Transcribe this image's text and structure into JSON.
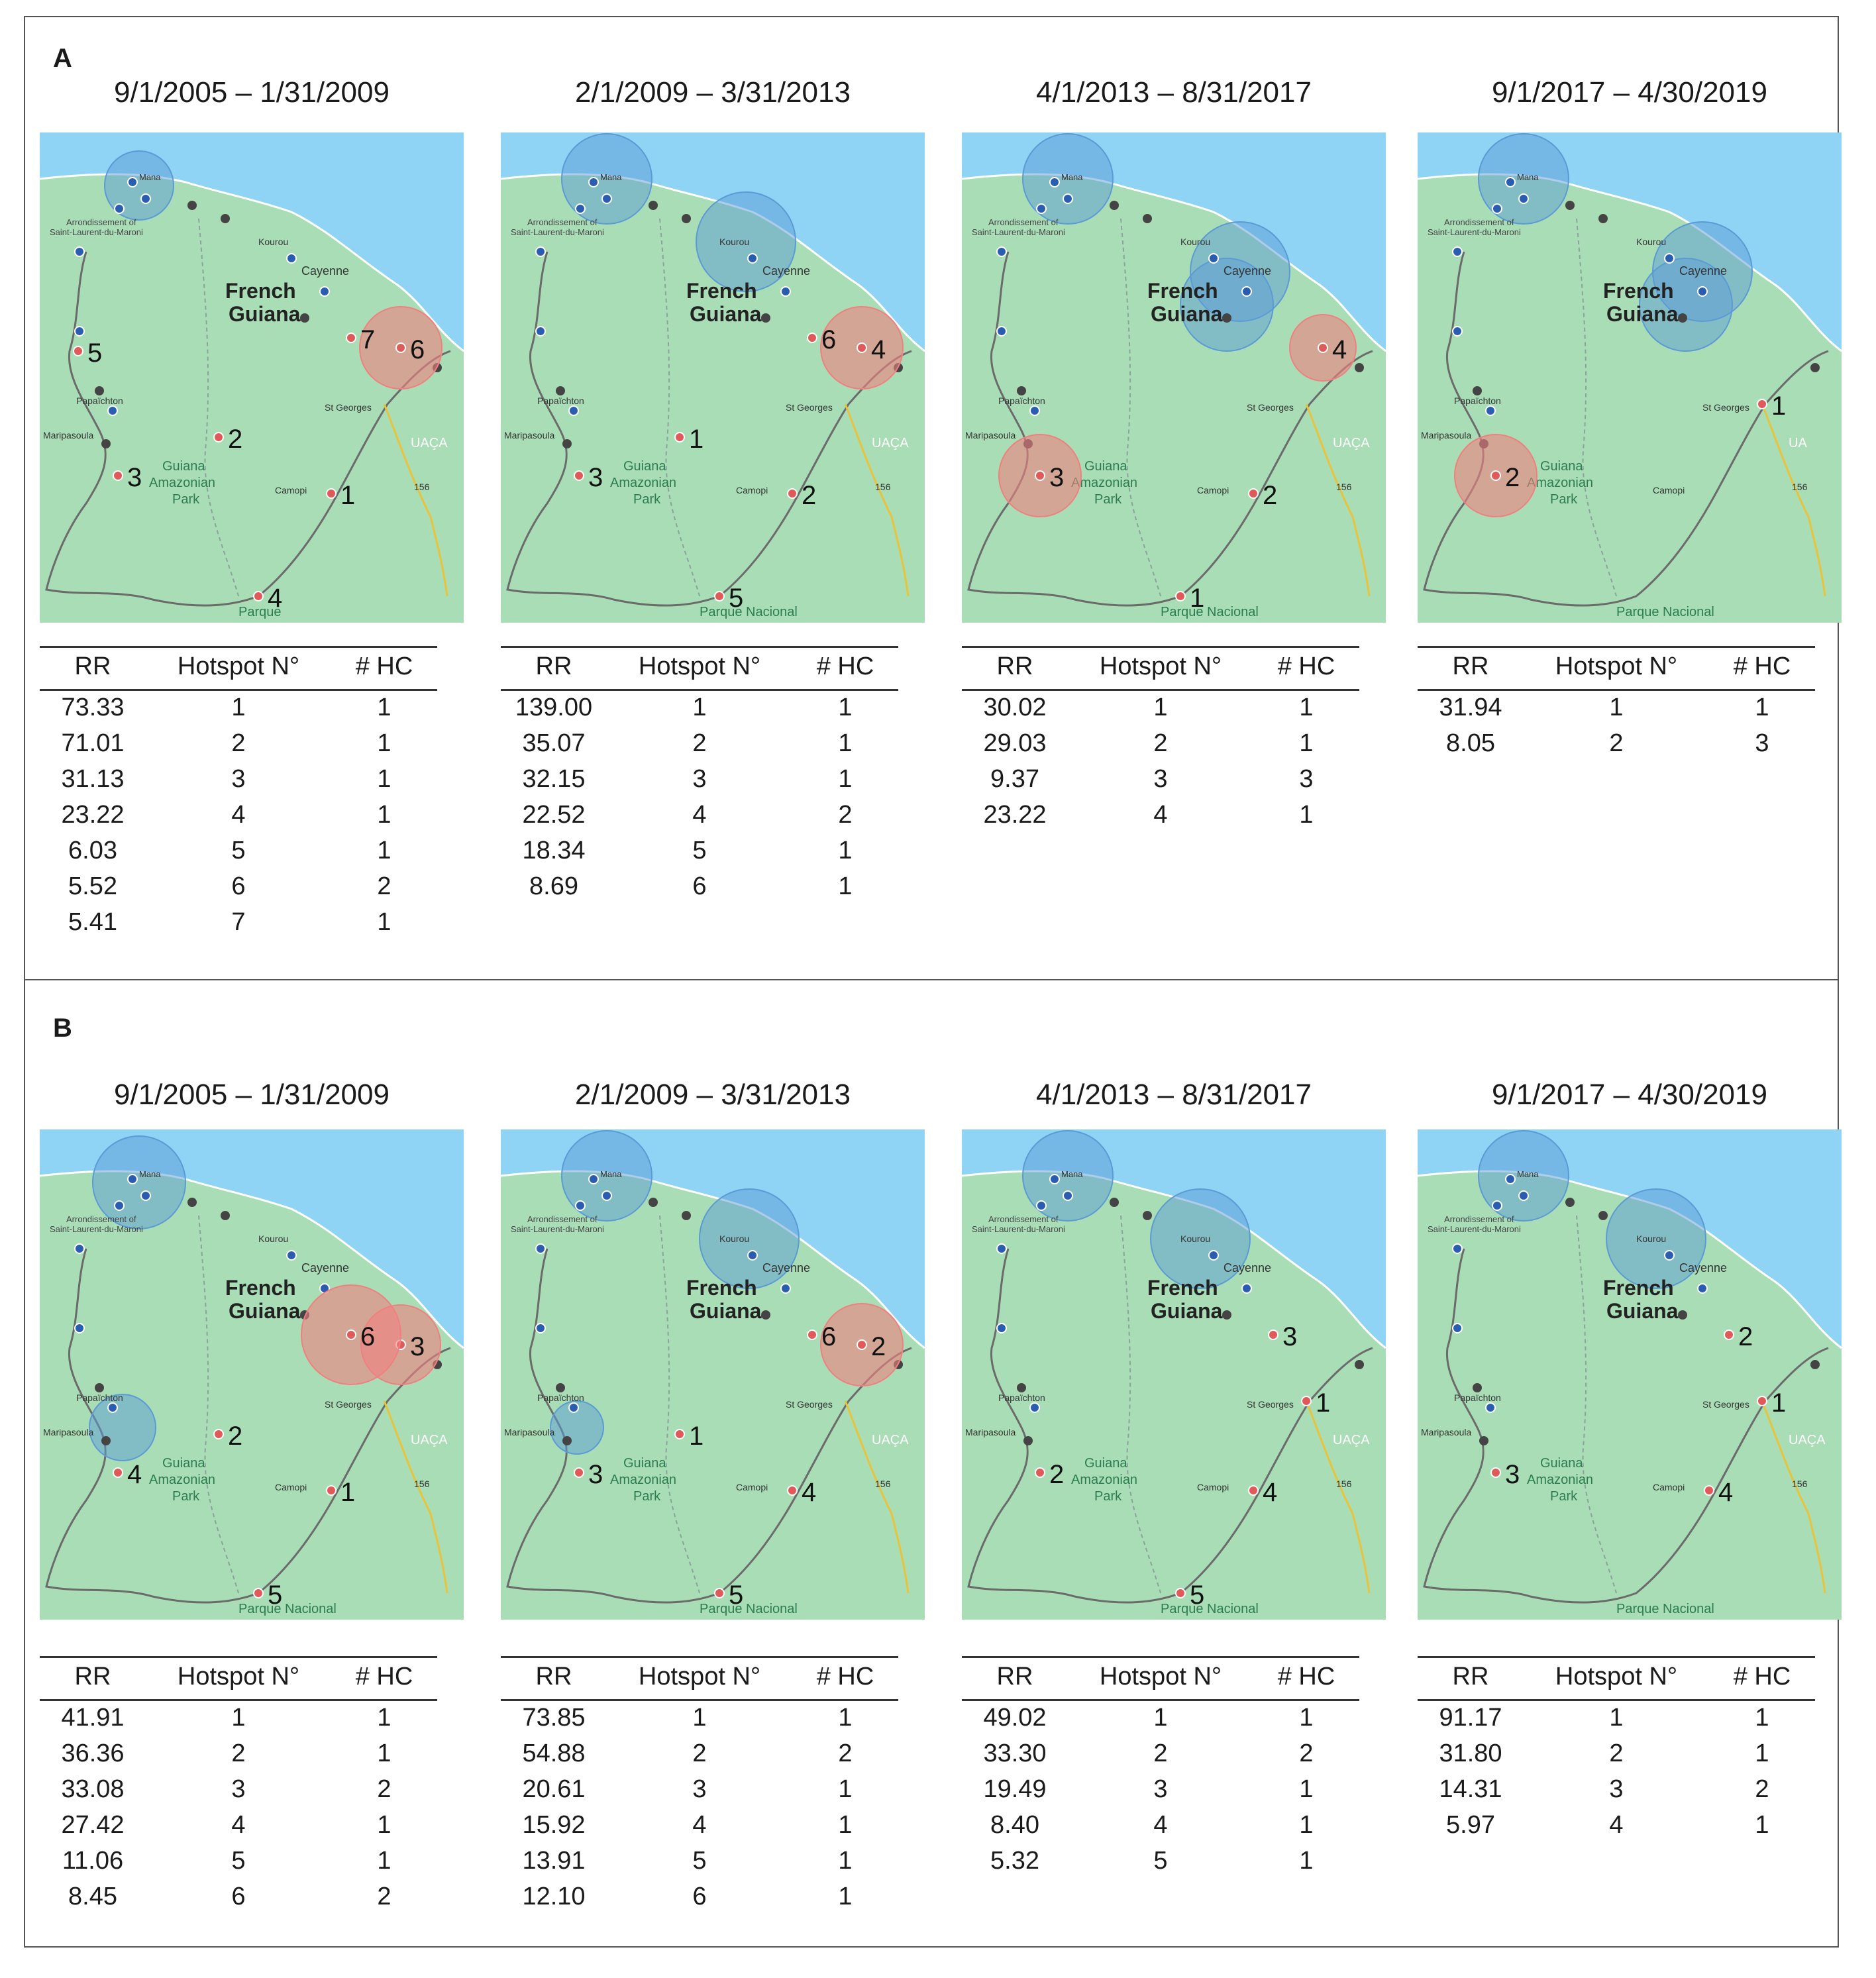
{
  "panels": [
    {
      "label": "A",
      "maps": [
        {
          "period": "9/1/2005 – 1/31/2009",
          "headers": [
            "RR",
            "Hotspot N°",
            "# HC"
          ],
          "rows": [
            [
              "73.33",
              "1",
              "1"
            ],
            [
              "71.01",
              "2",
              "1"
            ],
            [
              "31.13",
              "3",
              "1"
            ],
            [
              "23.22",
              "4",
              "1"
            ],
            [
              "6.03",
              "5",
              "1"
            ],
            [
              "5.52",
              "6",
              "2"
            ],
            [
              "5.41",
              "7",
              "1"
            ]
          ],
          "labels": {
            "mana": "Mana",
            "arr1": "Arrondissement of",
            "arr2": "Saint-Laurent-du-Maroni",
            "kourou": "Kourou",
            "cayenne": "Cayenne",
            "fg1": "French",
            "fg2": "Guiana",
            "papa": "Papaïchton",
            "mari": "Maripasoula",
            "park1": "Guiana",
            "park2": "Amazonian",
            "park3": "Park",
            "stg": "St Georges",
            "camopi": "Camopi",
            "uaca": "UAÇA",
            "road": "156",
            "parque": "Parque"
          }
        },
        {
          "period": "2/1/2009 – 3/31/2013",
          "headers": [
            "RR",
            "Hotspot N°",
            "# HC"
          ],
          "rows": [
            [
              "139.00",
              "1",
              "1"
            ],
            [
              "35.07",
              "2",
              "1"
            ],
            [
              "32.15",
              "3",
              "1"
            ],
            [
              "22.52",
              "4",
              "2"
            ],
            [
              "18.34",
              "5",
              "1"
            ],
            [
              "8.69",
              "6",
              "1"
            ]
          ],
          "labels": {
            "mana": "Mana",
            "arr1": "Arrondissement of",
            "arr2": "Saint-Laurent-du-Maroni",
            "kourou": "Kourou",
            "cayenne": "Cayenne",
            "fg1": "French",
            "fg2": "Guiana",
            "papa": "Papaïchton",
            "mari": "Maripasoula",
            "park1": "Guiana",
            "park2": "Amazonian",
            "park3": "Park",
            "stg": "St Georges",
            "camopi": "Camopi",
            "uaca": "UAÇA",
            "road": "156",
            "parque": "Parque Nacional"
          }
        },
        {
          "period": "4/1/2013 – 8/31/2017",
          "headers": [
            "RR",
            "Hotspot N°",
            "# HC"
          ],
          "rows": [
            [
              "30.02",
              "1",
              "1"
            ],
            [
              "29.03",
              "2",
              "1"
            ],
            [
              "9.37",
              "3",
              "3"
            ],
            [
              "23.22",
              "4",
              "1"
            ]
          ],
          "labels": {
            "mana": "Mana",
            "arr1": "Arrondissement of",
            "arr2": "Saint-Laurent-du-Maroni",
            "kourou": "Kourou",
            "cayenne": "Cayenne",
            "fg1": "French",
            "fg2": "Guiana",
            "papa": "Papaïchton",
            "mari": "Maripasoula",
            "park1": "Guiana",
            "park2": "Amazonian",
            "park3": "Park",
            "stg": "St Georges",
            "camopi": "Camopi",
            "uaca": "UAÇA",
            "road": "156",
            "parque": "Parque Nacional"
          }
        },
        {
          "period": "9/1/2017 – 4/30/2019",
          "headers": [
            "RR",
            "Hotspot N°",
            "# HC"
          ],
          "rows": [
            [
              "31.94",
              "1",
              "1"
            ],
            [
              "8.05",
              "2",
              "3"
            ]
          ],
          "labels": {
            "mana": "Mana",
            "arr1": "Arrondissement of",
            "arr2": "Saint-Laurent-du-Maroni",
            "kourou": "Kourou",
            "cayenne": "Cayenne",
            "fg1": "French",
            "fg2": "Guiana",
            "papa": "Papaïchton",
            "mari": "Maripasoula",
            "park1": "Guiana",
            "park2": "Amazonian",
            "park3": "Park",
            "stg": "St Georges",
            "camopi": "Camopi",
            "uaca": "UA",
            "road": "156",
            "parque": "Parque Nacional"
          }
        }
      ]
    },
    {
      "label": "B",
      "maps": [
        {
          "period": "9/1/2005 – 1/31/2009",
          "headers": [
            "RR",
            "Hotspot N°",
            "# HC"
          ],
          "rows": [
            [
              "41.91",
              "1",
              "1"
            ],
            [
              "36.36",
              "2",
              "1"
            ],
            [
              "33.08",
              "3",
              "2"
            ],
            [
              "27.42",
              "4",
              "1"
            ],
            [
              "11.06",
              "5",
              "1"
            ],
            [
              "8.45",
              "6",
              "2"
            ]
          ],
          "labels": {
            "mana": "Mana",
            "arr1": "Arrondissement of",
            "arr2": "Saint-Laurent-du-Maroni",
            "kourou": "Kourou",
            "cayenne": "Cayenne",
            "fg1": "French",
            "fg2": "Guiana",
            "papa": "Papaïchton",
            "mari": "Maripasoula",
            "park1": "Guiana",
            "park2": "Amazonian",
            "park3": "Park",
            "stg": "St Georges",
            "camopi": "Camopi",
            "uaca": "UAÇA",
            "road": "156",
            "parque": "Parque Nacional"
          }
        },
        {
          "period": "2/1/2009 – 3/31/2013",
          "headers": [
            "RR",
            "Hotspot N°",
            "# HC"
          ],
          "rows": [
            [
              "73.85",
              "1",
              "1"
            ],
            [
              "54.88",
              "2",
              "2"
            ],
            [
              "20.61",
              "3",
              "1"
            ],
            [
              "15.92",
              "4",
              "1"
            ],
            [
              "13.91",
              "5",
              "1"
            ],
            [
              "12.10",
              "6",
              "1"
            ]
          ],
          "labels": {
            "mana": "Mana",
            "arr1": "Arrondissement of",
            "arr2": "Saint-Laurent-du-Maroni",
            "kourou": "Kourou",
            "cayenne": "Cayenne",
            "fg1": "French",
            "fg2": "Guiana",
            "papa": "Papaïchton",
            "mari": "Maripasoula",
            "park1": "Guiana",
            "park2": "Amazonian",
            "park3": "Park",
            "stg": "St Georges",
            "camopi": "Camopi",
            "uaca": "UAÇA",
            "road": "156",
            "parque": "Parque Nacional"
          }
        },
        {
          "period": "4/1/2013 – 8/31/2017",
          "headers": [
            "RR",
            "Hotspot N°",
            "# HC"
          ],
          "rows": [
            [
              "49.02",
              "1",
              "1"
            ],
            [
              "33.30",
              "2",
              "2"
            ],
            [
              "19.49",
              "3",
              "1"
            ],
            [
              "8.40",
              "4",
              "1"
            ],
            [
              "5.32",
              "5",
              "1"
            ]
          ],
          "labels": {
            "mana": "Mana",
            "arr1": "Arrondissement of",
            "arr2": "Saint-Laurent-du-Maroni",
            "kourou": "Kourou",
            "cayenne": "Cayenne",
            "fg1": "French",
            "fg2": "Guiana",
            "papa": "Papaïchton",
            "mari": "Maripasoula",
            "park1": "Guiana",
            "park2": "Amazonian",
            "park3": "Park",
            "stg": "St Georges",
            "camopi": "Camopi",
            "uaca": "UAÇA",
            "road": "156",
            "parque": "Parque Nacional"
          }
        },
        {
          "period": "9/1/2017 – 4/30/2019",
          "headers": [
            "RR",
            "Hotspot N°",
            "# HC"
          ],
          "rows": [
            [
              "91.17",
              "1",
              "1"
            ],
            [
              "31.80",
              "2",
              "1"
            ],
            [
              "14.31",
              "3",
              "2"
            ],
            [
              "5.97",
              "4",
              "1"
            ]
          ],
          "labels": {
            "mana": "Mana",
            "arr1": "Arrondissement of",
            "arr2": "Saint-Laurent-du-Maroni",
            "kourou": "Kourou",
            "cayenne": "Cayenne",
            "fg1": "French",
            "fg2": "Guiana",
            "papa": "Papaïchton",
            "mari": "Maripasoula",
            "park1": "Guiana",
            "park2": "Amazonian",
            "park3": "Park",
            "stg": "St Georges",
            "camopi": "Camopi",
            "uaca": "UAÇA",
            "road": "156",
            "parque": "Parque Nacional"
          }
        }
      ]
    }
  ],
  "hotspots": [
    [
      [
        {
          "n": "1",
          "site": "camopi"
        },
        {
          "n": "2",
          "site": "center"
        },
        {
          "n": "3",
          "site": "mari_s"
        },
        {
          "n": "4",
          "site": "parque"
        },
        {
          "n": "5",
          "site": "west"
        },
        {
          "n": "6",
          "site": "ouanary"
        },
        {
          "n": "7",
          "site": "roura"
        }
      ],
      [
        {
          "n": "1",
          "site": "center"
        },
        {
          "n": "2",
          "site": "camopi"
        },
        {
          "n": "3",
          "site": "mari_s"
        },
        {
          "n": "4",
          "site": "ouanary"
        },
        {
          "n": "5",
          "site": "parque"
        },
        {
          "n": "6",
          "site": "roura"
        }
      ],
      [
        {
          "n": "1",
          "site": "parque"
        },
        {
          "n": "2",
          "site": "camopi"
        },
        {
          "n": "3",
          "site": "mari_s"
        },
        {
          "n": "4",
          "site": "ouanary"
        }
      ],
      [
        {
          "n": "1",
          "site": "stgeorges"
        },
        {
          "n": "2",
          "site": "mari_s"
        }
      ]
    ],
    [
      [
        {
          "n": "1",
          "site": "camopi"
        },
        {
          "n": "2",
          "site": "center"
        },
        {
          "n": "3",
          "site": "ouanary"
        },
        {
          "n": "4",
          "site": "mari_s"
        },
        {
          "n": "5",
          "site": "parque"
        },
        {
          "n": "6",
          "site": "roura"
        }
      ],
      [
        {
          "n": "1",
          "site": "center"
        },
        {
          "n": "2",
          "site": "ouanary"
        },
        {
          "n": "3",
          "site": "mari_s"
        },
        {
          "n": "4",
          "site": "camopi"
        },
        {
          "n": "5",
          "site": "parque"
        },
        {
          "n": "6",
          "site": "roura"
        }
      ],
      [
        {
          "n": "1",
          "site": "stgeorges"
        },
        {
          "n": "2",
          "site": "mari_s"
        },
        {
          "n": "3",
          "site": "roura"
        },
        {
          "n": "4",
          "site": "camopi"
        },
        {
          "n": "5",
          "site": "parque"
        }
      ],
      [
        {
          "n": "1",
          "site": "stgeorges"
        },
        {
          "n": "2",
          "site": "roura"
        },
        {
          "n": "3",
          "site": "mari_s"
        },
        {
          "n": "4",
          "site": "camopi"
        }
      ]
    ]
  ],
  "colors": {
    "sea": "#8fd3f5",
    "land": "#a8ddb5",
    "border": "#6b6b6b",
    "blue_circle": "#5b9bd5",
    "red_circle": "#f08080",
    "blue_dot": "#2a5db0",
    "red_dot": "#e05a5a",
    "gray_dot": "#444444",
    "road": "#e8c33c"
  }
}
